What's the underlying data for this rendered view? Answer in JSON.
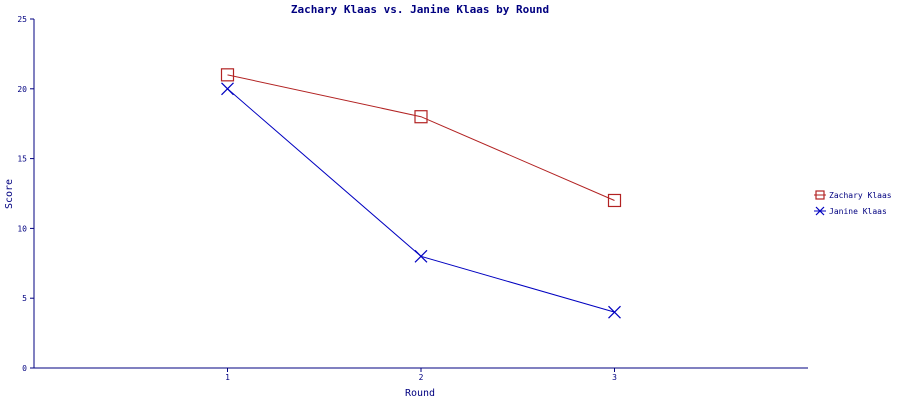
{
  "chart_data": {
    "type": "line",
    "title": "Zachary Klaas vs. Janine Klaas by Round",
    "xlabel": "Round",
    "ylabel": "Score",
    "categories": [
      "1",
      "2",
      "3"
    ],
    "x_range": [
      0,
      4
    ],
    "ylim": [
      0,
      25
    ],
    "yticks": [
      "0",
      "5",
      "10",
      "15",
      "20",
      "25"
    ],
    "grid": false,
    "legend_position": "right",
    "axis_color": "#000080",
    "series": [
      {
        "name": "Zachary Klaas",
        "values": [
          21,
          18,
          12
        ],
        "color": "#b22222",
        "marker": "square"
      },
      {
        "name": "Janine Klaas",
        "values": [
          20,
          8,
          4
        ],
        "color": "#0000c0",
        "marker": "x"
      }
    ]
  }
}
